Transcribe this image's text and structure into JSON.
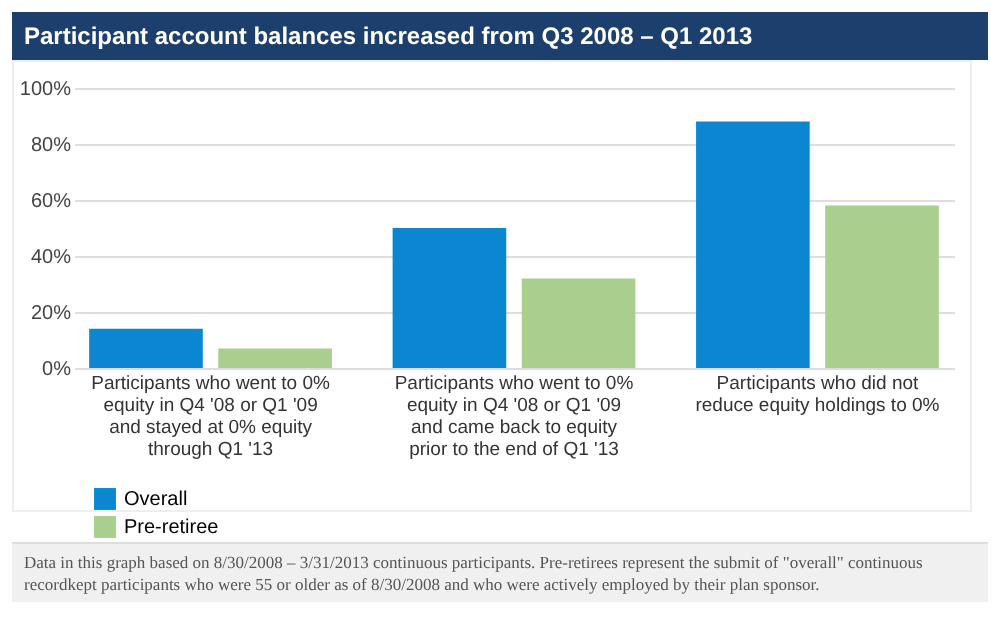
{
  "chart_data": {
    "type": "bar",
    "title": "Participant account balances increased from Q3 2008 – Q1 2013",
    "categories": [
      "Participants who went to 0% equity in Q4 '08 or Q1 '09 and stayed at 0% equity through Q1 '13",
      "Participants who went to 0% equity in Q4 '08 or Q1 '09 and came back to equity prior to the end of Q1 '13",
      "Participants who did not reduce equity holdings to 0%"
    ],
    "series": [
      {
        "name": "Overall",
        "color": "#0a87d0",
        "values": [
          14,
          50,
          88
        ]
      },
      {
        "name": "Pre-retiree",
        "color": "#a8cf8e",
        "values": [
          7,
          32,
          58
        ]
      }
    ],
    "ylim": [
      0,
      100
    ],
    "yticks": [
      {
        "value": 0,
        "label": "0%"
      },
      {
        "value": 20,
        "label": "20%"
      },
      {
        "value": 40,
        "label": "40%"
      },
      {
        "value": 60,
        "label": "60%"
      },
      {
        "value": 80,
        "label": "80%"
      },
      {
        "value": 100,
        "label": "100%"
      }
    ],
    "grid": "y",
    "legend": "bottom left",
    "annotations": [
      "Data in this graph based on 8/30/2008 – 3/31/2013 continuous participants. Pre-retirees represent the submit of \"overall\" continuous recordkept participants who were 55 or older as of 8/30/2008 and who were actively employed by their plan sponsor."
    ]
  }
}
